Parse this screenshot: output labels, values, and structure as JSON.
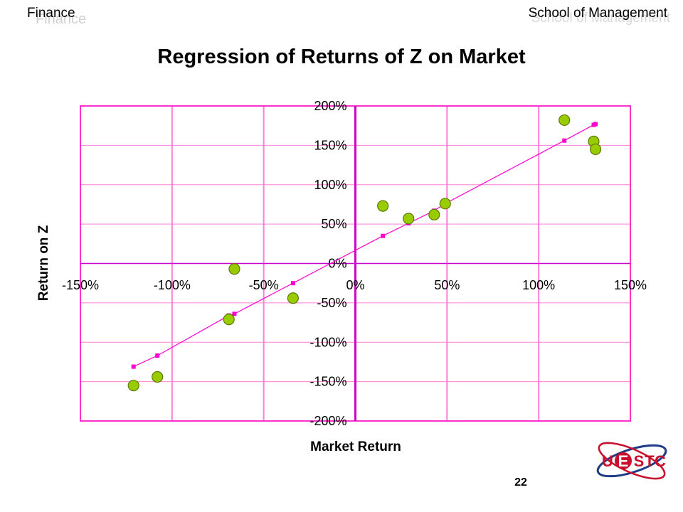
{
  "header": {
    "left_label": "Finance",
    "left_label_echo": "Finance",
    "right_label": "School of Management",
    "right_label_echo": "School of Management"
  },
  "slide": {
    "page_number": "22"
  },
  "logo": {
    "letters": [
      "U",
      "E",
      "S",
      "T",
      "C"
    ]
  },
  "colors": {
    "plot_border": "#ff33cc",
    "gridlines": "#ff80d5",
    "axis_lines": "#cc00cc",
    "regression_line": "#ff00cc",
    "points_fill": "#99cc00",
    "points_stroke": "#5b7a00",
    "logo_red": "#c8102e",
    "logo_blue": "#1f3c88"
  },
  "chart_data": {
    "type": "scatter",
    "title": "Regression of Returns of Z on Market",
    "xlabel": "Market Return",
    "ylabel": "Return on Z",
    "xlim": [
      -150,
      150
    ],
    "ylim": [
      -200,
      200
    ],
    "x_ticks": [
      -150,
      -100,
      -50,
      0,
      50,
      100,
      150
    ],
    "y_ticks": [
      200,
      150,
      100,
      50,
      0,
      -50,
      -100,
      -150,
      -200
    ],
    "x_tick_labels": [
      "-150%",
      "-100%",
      "-50%",
      "0%",
      "50%",
      "100%",
      "150%"
    ],
    "y_tick_labels": [
      "200%",
      "150%",
      "100%",
      "50%",
      "0%",
      "-50%",
      "-100%",
      "-150%",
      "-200%"
    ],
    "grid": true,
    "series": [
      {
        "kind": "scatter",
        "points": [
          {
            "x": -121,
            "y": -155
          },
          {
            "x": -108,
            "y": -144
          },
          {
            "x": -69,
            "y": -71
          },
          {
            "x": -66,
            "y": -7
          },
          {
            "x": -34,
            "y": -44
          },
          {
            "x": 15,
            "y": 73
          },
          {
            "x": 29,
            "y": 57
          },
          {
            "x": 43,
            "y": 62
          },
          {
            "x": 49,
            "y": 76
          },
          {
            "x": 114,
            "y": 182
          },
          {
            "x": 130,
            "y": 155
          },
          {
            "x": 131,
            "y": 145
          }
        ]
      },
      {
        "kind": "regression-line",
        "points": [
          {
            "x": -121,
            "y": -131
          },
          {
            "x": -108,
            "y": -117
          },
          {
            "x": -69,
            "y": -66
          },
          {
            "x": -66,
            "y": -64
          },
          {
            "x": -34,
            "y": -25
          },
          {
            "x": 15,
            "y": 35
          },
          {
            "x": 29,
            "y": 51
          },
          {
            "x": 43,
            "y": 67
          },
          {
            "x": 49,
            "y": 76
          },
          {
            "x": 114,
            "y": 156
          },
          {
            "x": 130,
            "y": 176
          },
          {
            "x": 131,
            "y": 177
          }
        ]
      }
    ]
  }
}
